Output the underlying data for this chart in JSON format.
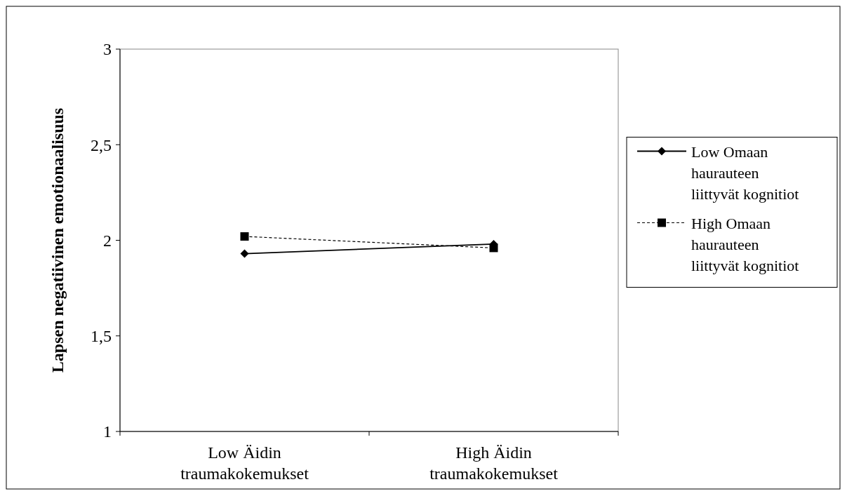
{
  "chart_data": {
    "type": "line",
    "ylabel": "Lapsen negatiivinen emotionaalisuus",
    "categories": [
      "Low Äidin traumakokemukset",
      "High Äidin traumakokemukset"
    ],
    "series": [
      {
        "name": "Low Omaan haurauteen liittyvät kognitiot",
        "color": "#000000",
        "values": [
          1.93,
          1.98
        ],
        "marker": "diamond",
        "line_style": "solid"
      },
      {
        "name": "High Omaan haurauteen liittyvät kognitiot",
        "color": "#000000",
        "values": [
          2.02,
          1.96
        ],
        "marker": "square",
        "line_style": "dashed"
      }
    ],
    "ylim": [
      1,
      3
    ],
    "yticks": [
      1,
      {
        "value": 1.5,
        "label": "1,5"
      },
      2,
      {
        "value": 2.5,
        "label": "2,5"
      },
      3
    ],
    "grid": false,
    "legend": "right"
  }
}
